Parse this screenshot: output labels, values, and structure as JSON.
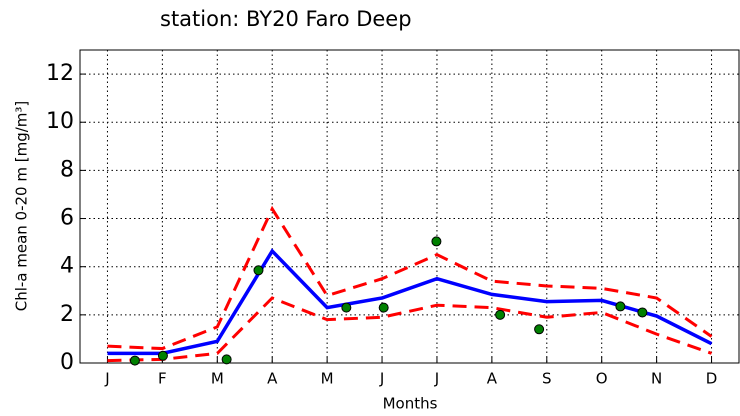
{
  "chart_data": {
    "type": "line",
    "title": "station: BY20 Faro Deep",
    "xlabel": "Months",
    "ylabel": "Chl-a mean 0-20 m [mg/m³]",
    "x": [
      1,
      2,
      3,
      4,
      5,
      6,
      7,
      8,
      9,
      10,
      11,
      12
    ],
    "xlim": [
      0.5,
      12.5
    ],
    "xticks": [
      {
        "value": 1,
        "label": "J"
      },
      {
        "value": 2,
        "label": "F"
      },
      {
        "value": 3,
        "label": "M"
      },
      {
        "value": 4,
        "label": "A"
      },
      {
        "value": 5,
        "label": "M"
      },
      {
        "value": 6,
        "label": "J"
      },
      {
        "value": 7,
        "label": "J"
      },
      {
        "value": 8,
        "label": "A"
      },
      {
        "value": 9,
        "label": "S"
      },
      {
        "value": 10,
        "label": "O"
      },
      {
        "value": 11,
        "label": "N"
      },
      {
        "value": 12,
        "label": "D"
      }
    ],
    "ylim": [
      0,
      13
    ],
    "yticks": [
      0,
      2,
      4,
      6,
      8,
      10,
      12
    ],
    "grid": true,
    "series": [
      {
        "color": "#0000ff",
        "style": "solid",
        "values": [
          0.4,
          0.4,
          0.9,
          4.65,
          2.3,
          2.7,
          3.5,
          2.85,
          2.55,
          2.6,
          1.95,
          0.8
        ]
      },
      {
        "color": "#ff0000",
        "style": "dashed",
        "values": [
          0.7,
          0.6,
          1.5,
          6.4,
          2.8,
          3.5,
          4.5,
          3.4,
          3.2,
          3.1,
          2.7,
          1.1
        ]
      },
      {
        "color": "#ff0000",
        "style": "dashed",
        "values": [
          0.1,
          0.15,
          0.4,
          2.7,
          1.8,
          1.9,
          2.4,
          2.3,
          1.9,
          2.1,
          1.2,
          0.4
        ]
      },
      {
        "color": "#008000",
        "style": "markers",
        "x": [
          1.5,
          2.01,
          3.17,
          3.75,
          5.35,
          6.03,
          6.99,
          8.15,
          8.86,
          10.34,
          10.74
        ],
        "values": [
          0.1,
          0.3,
          0.15,
          3.85,
          2.3,
          2.3,
          5.05,
          2.0,
          1.4,
          2.35,
          2.1
        ]
      }
    ]
  }
}
